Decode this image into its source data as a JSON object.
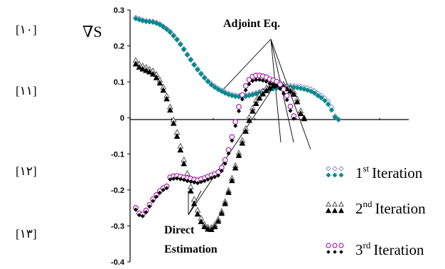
{
  "margin_refs": [
    "[١٠]",
    "[١١]",
    "[١٢]",
    "[١٣]"
  ],
  "colors": {
    "adjoint_1": "#9999cc",
    "direct_1": "#008b8b",
    "adjoint_2": "#444444",
    "direct_2": "#000000",
    "adjoint_3": "#aa22aa",
    "direct_3": "#000000"
  },
  "chart_data": {
    "type": "scatter",
    "ylabel": "∇S",
    "xlabel": "",
    "ylim": [
      -0.4,
      0.3
    ],
    "yticks": [
      0.3,
      0.2,
      0.1,
      0,
      -0.1,
      -0.2,
      -0.3,
      -0.4
    ],
    "ytick_labels": [
      "0.3",
      "0.2",
      "0.1",
      "0",
      "-0.1",
      "-0.2",
      "-0.3",
      "-0.4"
    ],
    "xlim": [
      0,
      80
    ],
    "x": [
      1,
      2,
      3,
      4,
      5,
      6,
      7,
      8,
      9,
      10,
      11,
      12,
      13,
      14,
      15,
      16,
      17,
      18,
      19,
      20,
      21,
      22,
      23,
      24,
      25,
      26,
      27,
      28,
      29,
      30,
      31,
      32,
      33,
      34,
      35,
      36,
      37,
      38,
      39,
      40,
      41,
      42,
      43,
      44,
      45,
      46,
      47,
      48,
      49,
      50,
      51,
      52,
      53,
      54,
      55,
      56,
      57,
      58,
      59,
      60,
      61,
      62,
      63,
      64,
      65,
      66,
      67,
      68,
      69,
      70,
      71,
      72,
      73,
      74,
      75,
      76,
      77,
      78,
      79
    ],
    "series": [
      {
        "key": "adjoint_1",
        "marker": "diamond-open",
        "values": [
          0.279,
          0.276,
          0.272,
          0.27,
          0.269,
          0.268,
          0.265,
          0.261,
          0.255,
          0.248,
          0.24,
          0.23,
          0.219,
          0.206,
          0.192,
          0.177,
          0.163,
          0.149,
          0.136,
          0.124,
          0.113,
          0.103,
          0.095,
          0.088,
          0.082,
          0.077,
          0.072,
          0.068,
          0.065,
          0.063,
          0.062,
          0.062,
          0.063,
          0.065,
          0.067,
          0.07,
          0.073,
          0.076,
          0.079,
          0.082,
          0.084,
          0.086,
          0.088,
          0.089,
          0.09,
          0.09,
          0.089,
          0.088,
          0.087,
          0.085,
          0.083,
          0.08,
          0.075,
          0.068,
          0.062,
          0.055,
          0.045,
          0.03,
          0.005,
          -0.005,
          null,
          null,
          null,
          null,
          null,
          null,
          null,
          null,
          null,
          null,
          null,
          null,
          null,
          null,
          null,
          null,
          null,
          null,
          null
        ]
      },
      {
        "key": "direct_1",
        "marker": "diamond-filled",
        "values": [
          0.276,
          0.273,
          0.27,
          0.268,
          0.267,
          0.266,
          0.263,
          0.259,
          0.253,
          0.246,
          0.238,
          0.228,
          0.217,
          0.204,
          0.19,
          0.175,
          0.161,
          0.147,
          0.134,
          0.122,
          0.111,
          0.101,
          0.092,
          0.085,
          0.079,
          0.074,
          0.069,
          0.065,
          0.062,
          0.06,
          0.059,
          0.059,
          0.06,
          0.062,
          0.064,
          0.067,
          0.07,
          0.073,
          0.076,
          0.079,
          0.081,
          0.083,
          0.085,
          0.086,
          0.086,
          0.086,
          0.085,
          0.084,
          0.082,
          0.08,
          0.077,
          0.074,
          0.069,
          0.062,
          0.056,
          0.048,
          0.038,
          0.022,
          0.002,
          -0.004,
          null,
          null,
          null,
          null,
          null,
          null,
          null,
          null,
          null,
          null,
          null,
          null,
          null,
          null,
          null,
          null,
          null,
          null,
          null
        ]
      },
      {
        "key": "adjoint_2",
        "marker": "triangle-open",
        "values": [
          0.16,
          0.15,
          0.145,
          0.141,
          0.136,
          0.131,
          0.121,
          0.106,
          0.086,
          0.062,
          0.031,
          -0.005,
          -0.04,
          -0.078,
          -0.116,
          -0.154,
          -0.191,
          -0.226,
          -0.256,
          -0.278,
          -0.295,
          -0.303,
          -0.304,
          -0.296,
          -0.281,
          -0.259,
          -0.232,
          -0.201,
          -0.167,
          -0.132,
          -0.097,
          -0.062,
          -0.029,
          0.002,
          0.028,
          0.049,
          0.064,
          0.075,
          0.084,
          0.091,
          0.097,
          0.1,
          0.099,
          0.094,
          0.088,
          0.082,
          0.073,
          0.053,
          0.02,
          0.001,
          null,
          null,
          null,
          null,
          null,
          null,
          null,
          null,
          null,
          null,
          null,
          null,
          null,
          null,
          null,
          null,
          null,
          null,
          null,
          null,
          null,
          null,
          null,
          null,
          null,
          null,
          null,
          null,
          null
        ]
      },
      {
        "key": "direct_2",
        "marker": "triangle-filled",
        "values": [
          0.15,
          0.141,
          0.136,
          0.132,
          0.128,
          0.122,
          0.112,
          0.097,
          0.077,
          0.053,
          0.022,
          -0.015,
          -0.051,
          -0.089,
          -0.127,
          -0.166,
          -0.203,
          -0.238,
          -0.267,
          -0.288,
          -0.302,
          -0.309,
          -0.31,
          -0.302,
          -0.287,
          -0.265,
          -0.238,
          -0.207,
          -0.174,
          -0.139,
          -0.104,
          -0.07,
          -0.037,
          -0.007,
          0.019,
          0.04,
          0.055,
          0.067,
          0.076,
          0.083,
          0.089,
          0.093,
          0.092,
          0.087,
          0.081,
          0.075,
          0.066,
          0.045,
          0.012,
          -0.002,
          null,
          null,
          null,
          null,
          null,
          null,
          null,
          null,
          null,
          null,
          null,
          null,
          null,
          null,
          null,
          null,
          null,
          null,
          null,
          null,
          null,
          null,
          null,
          null,
          null,
          null,
          null,
          null,
          null
        ]
      },
      {
        "key": "adjoint_3",
        "marker": "circle-open",
        "values": [
          -0.25,
          -0.265,
          -0.268,
          -0.257,
          -0.241,
          -0.226,
          -0.214,
          -0.203,
          -0.195,
          -0.19,
          -0.165,
          -0.162,
          -0.161,
          -0.163,
          -0.165,
          -0.167,
          -0.169,
          -0.171,
          -0.173,
          -0.17,
          -0.167,
          -0.163,
          -0.159,
          -0.156,
          -0.151,
          -0.138,
          -0.117,
          -0.089,
          -0.053,
          -0.011,
          0.031,
          0.064,
          0.089,
          0.106,
          0.115,
          0.118,
          0.118,
          0.116,
          0.113,
          0.108,
          0.105,
          0.101,
          0.093,
          0.08,
          0.062,
          0.032,
          0.005,
          null,
          null,
          null,
          null,
          null,
          null,
          null,
          null,
          null,
          null,
          null,
          null,
          null,
          null,
          null,
          null,
          null,
          null,
          null,
          null,
          null,
          null,
          null,
          null,
          null,
          null,
          null,
          null,
          null,
          null,
          null,
          null
        ]
      },
      {
        "key": "direct_3",
        "marker": "diamond-small-filled",
        "values": [
          -0.255,
          -0.27,
          -0.273,
          -0.262,
          -0.246,
          -0.231,
          -0.219,
          -0.208,
          -0.2,
          -0.195,
          -0.171,
          -0.169,
          -0.168,
          -0.17,
          -0.172,
          -0.175,
          -0.177,
          -0.179,
          -0.181,
          -0.178,
          -0.175,
          -0.171,
          -0.167,
          -0.164,
          -0.16,
          -0.147,
          -0.127,
          -0.099,
          -0.063,
          -0.022,
          0.019,
          0.052,
          0.077,
          0.094,
          0.103,
          0.106,
          0.106,
          0.104,
          0.101,
          0.096,
          0.093,
          0.089,
          0.081,
          0.068,
          0.05,
          0.02,
          -0.002,
          null,
          null,
          null,
          null,
          null,
          null,
          null,
          null,
          null,
          null,
          null,
          null,
          null,
          null,
          null,
          null,
          null,
          null,
          null,
          null,
          null,
          null,
          null,
          null,
          null,
          null,
          null,
          null,
          null,
          null,
          null,
          null
        ]
      }
    ],
    "annotations": [
      {
        "text": "Adjoint Eq."
      },
      {
        "text_lines": [
          "Direct",
          "Estimation"
        ]
      }
    ],
    "legend": {
      "placement": "bottom-right",
      "entries": [
        {
          "base": "1",
          "sup": "st",
          "text": "Iteration",
          "open": "adjoint_1",
          "filled": "direct_1"
        },
        {
          "base": "2",
          "sup": "nd",
          "text": "Iteration",
          "open": "adjoint_2",
          "filled": "direct_2"
        },
        {
          "base": "3",
          "sup": "rd",
          "text": "Iteration",
          "open": "adjoint_3",
          "filled": "direct_3"
        }
      ]
    }
  }
}
